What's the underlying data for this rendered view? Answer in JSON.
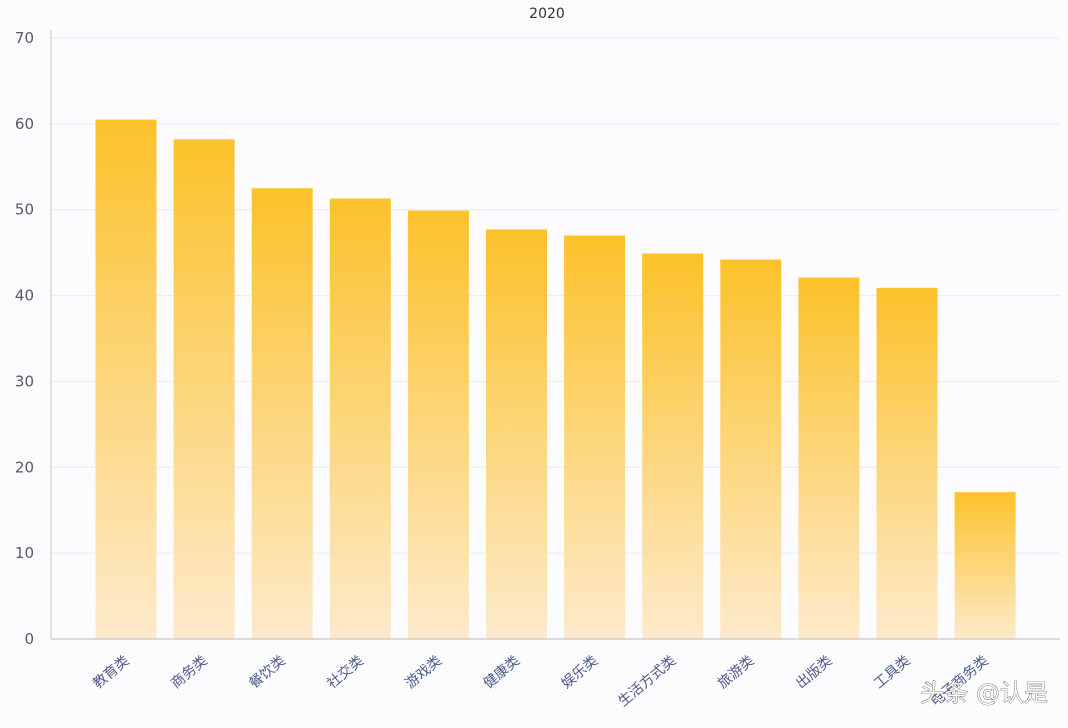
{
  "chart_data": {
    "type": "bar",
    "title": "2020",
    "xlabel": "",
    "ylabel": "",
    "categories": [
      "教育类",
      "商务类",
      "餐饮类",
      "社交类",
      "游戏类",
      "健康类",
      "娱乐类",
      "生活方式类",
      "旅游类",
      "出版类",
      "工具类",
      "电子商务类"
    ],
    "values": [
      60.5,
      58.2,
      52.5,
      51.3,
      49.9,
      47.7,
      47.0,
      44.9,
      44.2,
      42.1,
      40.9,
      17.1
    ],
    "yticks": [
      0,
      10,
      20,
      30,
      40,
      50,
      60,
      70
    ],
    "ylim": [
      0,
      70
    ],
    "grid": true,
    "legend": "none",
    "bar_color_top": "#fcc22a",
    "bar_color_bottom": "#fdeacb"
  },
  "watermark": "头条 @认是"
}
